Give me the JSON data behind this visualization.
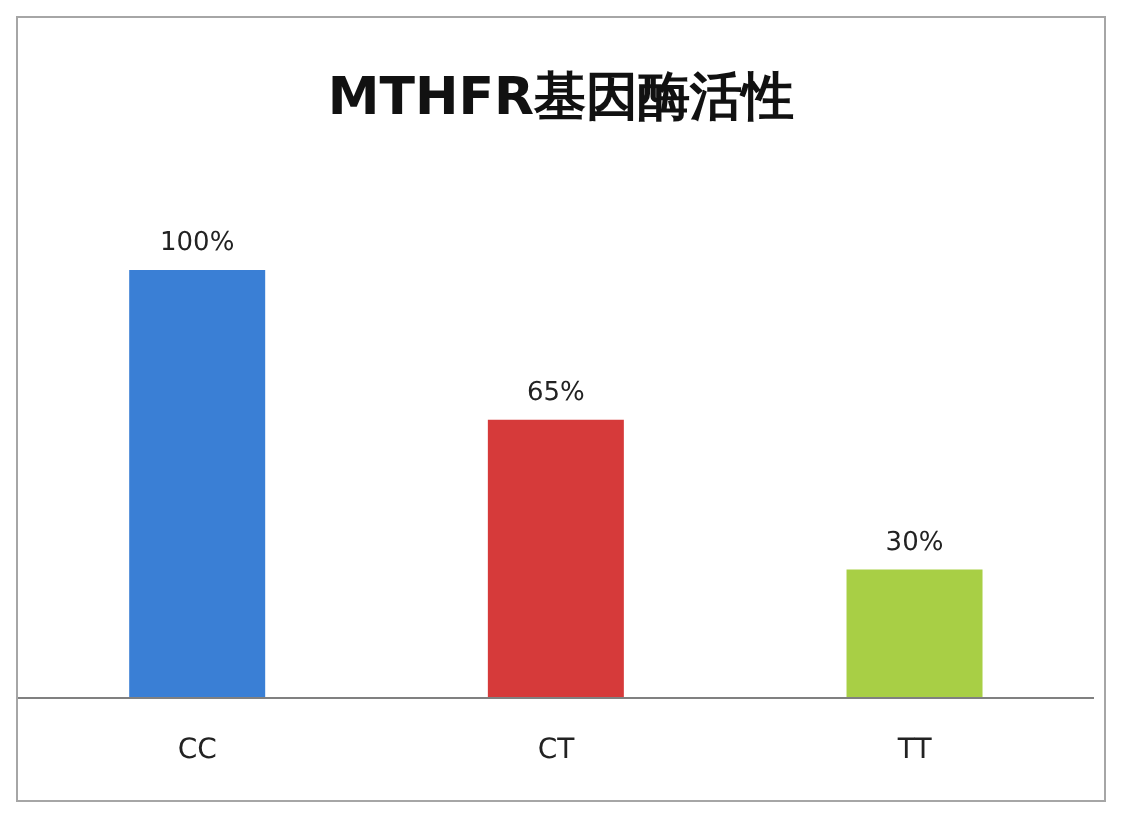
{
  "chart_data": {
    "type": "bar",
    "title": "MTHFR基因酶活性",
    "categories": [
      "CC",
      "CT",
      "TT"
    ],
    "values": [
      100,
      65,
      30
    ],
    "colors": [
      "#3a7fd5",
      "#d63a3a",
      "#a8cf45"
    ],
    "value_labels": [
      "100%",
      "65%",
      "30%"
    ],
    "grid": false
  }
}
